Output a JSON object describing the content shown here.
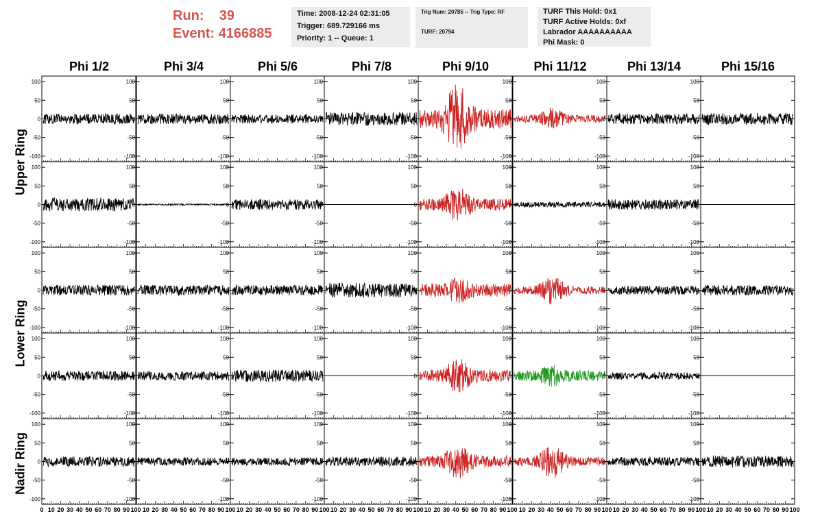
{
  "run": {
    "run_label": "Run:",
    "run_value": "39",
    "event_label": "Event:",
    "event_value": "4166885",
    "color": "#d9534f"
  },
  "info_box_1": {
    "time": "Time: 2008-12-24 02:31:05",
    "trigger": "Trigger: 689.729166 ms",
    "priority": "Priority: 1 -- Queue: 1"
  },
  "info_box_2": {
    "trig": "Trig Num: 20785 -- Trig Type: RF",
    "turf": "TURF: 20794"
  },
  "info_box_3": {
    "hold": "TURF This Hold: 0x1",
    "active": "TURF Active Holds: 0xf",
    "labrador": "Labrador AAAAAAAAAA",
    "phimask": "Phi Mask: 0"
  },
  "phi_headers": [
    "Phi 1/2",
    "Phi 3/4",
    "Phi 5/6",
    "Phi 7/8",
    "Phi 9/10",
    "Phi 11/12",
    "Phi 13/14",
    "Phi 15/16"
  ],
  "ring_labels": {
    "upper": "Upper Ring",
    "lower": "Lower Ring",
    "nadir": "Nadir Ring"
  },
  "axis": {
    "y_ticks": [
      "100",
      "50",
      "0",
      "-50",
      "-100"
    ],
    "x_ticks": [
      "0",
      "10",
      "20",
      "30",
      "40",
      "50",
      "60",
      "70",
      "80",
      "90",
      "100"
    ],
    "x_range": [
      0,
      100
    ],
    "y_range": [
      -115,
      115
    ]
  },
  "colors": {
    "trace_default": "#000000",
    "trace_red": "#cc2222",
    "trace_green": "#229922"
  },
  "panels": [
    [
      {
        "c": "k",
        "a": 14
      },
      {
        "c": "k",
        "a": 14
      },
      {
        "c": "k",
        "a": 12
      },
      {
        "c": "k",
        "a": 18
      },
      {
        "c": "r",
        "a": 26,
        "b": 75
      },
      {
        "c": "r",
        "a": 10,
        "b": 20
      },
      {
        "c": "k",
        "a": 14
      },
      {
        "c": "k",
        "a": 16
      }
    ],
    [
      {
        "c": "k",
        "a": 18
      },
      {
        "c": "k",
        "a": 2
      },
      {
        "c": "k",
        "a": 14
      },
      {
        "c": "k",
        "a": 0
      },
      {
        "c": "r",
        "a": 16,
        "b": 32
      },
      {
        "c": "k",
        "a": 7
      },
      {
        "c": "k",
        "a": 14
      },
      {
        "c": "k",
        "a": 0
      }
    ],
    [
      {
        "c": "k",
        "a": 14
      },
      {
        "c": "k",
        "a": 14
      },
      {
        "c": "k",
        "a": 14
      },
      {
        "c": "k",
        "a": 20
      },
      {
        "c": "r",
        "a": 18,
        "b": 18
      },
      {
        "c": "r",
        "a": 10,
        "b": 28
      },
      {
        "c": "k",
        "a": 12
      },
      {
        "c": "k",
        "a": 14
      }
    ],
    [
      {
        "c": "k",
        "a": 14
      },
      {
        "c": "k",
        "a": 12
      },
      {
        "c": "k",
        "a": 16
      },
      {
        "c": "k",
        "a": 0
      },
      {
        "c": "r",
        "a": 16,
        "b": 32
      },
      {
        "c": "g",
        "a": 14,
        "b": 16
      },
      {
        "c": "k",
        "a": 10
      },
      {
        "c": "k",
        "a": 0
      }
    ],
    [
      {
        "c": "k",
        "a": 14
      },
      {
        "c": "k",
        "a": 11
      },
      {
        "c": "k",
        "a": 11
      },
      {
        "c": "k",
        "a": 13
      },
      {
        "c": "r",
        "a": 16,
        "b": 32
      },
      {
        "c": "r",
        "a": 12,
        "b": 35
      },
      {
        "c": "k",
        "a": 12
      },
      {
        "c": "k",
        "a": 16
      }
    ]
  ]
}
